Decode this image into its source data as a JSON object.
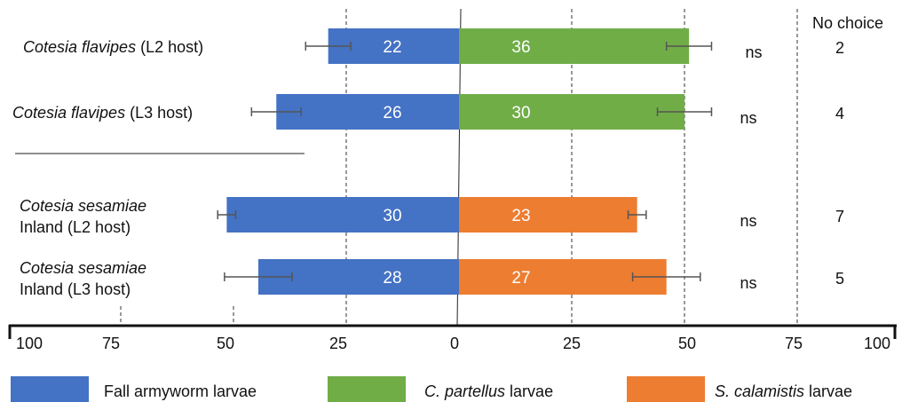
{
  "chart_data": {
    "type": "bar",
    "orientation": "horizontal-diverging",
    "xlim": [
      -100,
      100
    ],
    "tick_values": [
      -100,
      -75,
      -50,
      -25,
      0,
      25,
      50,
      75,
      100
    ],
    "tick_labels": [
      "100",
      "75",
      "50",
      "25",
      "0",
      "25",
      "50",
      "75",
      "100"
    ],
    "no_choice_header": "No choice",
    "groups": [
      {
        "label_italic": "Cotesia flavipes",
        "label_rest": " (L2 host)",
        "label_line2": "",
        "left_value": 29,
        "left_err": 5,
        "left_count": "22",
        "right_value": 51,
        "right_err": 5,
        "right_count": "36",
        "right_series": "C. partellus",
        "sig": "ns",
        "no_choice": "2"
      },
      {
        "label_italic": "Cotesia flavipes",
        "label_rest": " (L3 host)",
        "label_line2": "",
        "left_value": 40.5,
        "left_err": 5.5,
        "left_count": "26",
        "right_value": 50,
        "right_err": 6,
        "right_count": "30",
        "right_series": "C. partellus",
        "sig": "ns",
        "no_choice": "4"
      },
      {
        "label_italic": "Cotesia sesamiae",
        "label_rest": "",
        "label_line2": "Inland (L2 host)",
        "left_value": 51.5,
        "left_err": 2,
        "left_count": "30",
        "right_value": 39.5,
        "right_err": 2,
        "right_count": "23",
        "right_series": "S. calamistis",
        "sig": "ns",
        "no_choice": "7"
      },
      {
        "label_italic": "Cotesia sesamiae",
        "label_rest": "",
        "label_line2": "Inland (L3 host)",
        "left_value": 44.5,
        "left_err": 7.5,
        "left_count": "28",
        "right_value": 46,
        "right_err": 7.5,
        "right_count": "27",
        "right_series": "S. calamistis",
        "sig": "ns",
        "no_choice": "5"
      }
    ],
    "legend": [
      {
        "italic": "",
        "rest": "Fall armyworm larvae",
        "color": "#4472C4"
      },
      {
        "italic": "C. partellus",
        "rest": " larvae",
        "color": "#70AD47"
      },
      {
        "italic": "S. calamistis",
        "rest": " larvae",
        "color": "#ED7D31"
      }
    ],
    "colors": {
      "fall_armyworm": "#4472C4",
      "C. partellus": "#70AD47",
      "S. calamistis": "#ED7D31"
    }
  }
}
